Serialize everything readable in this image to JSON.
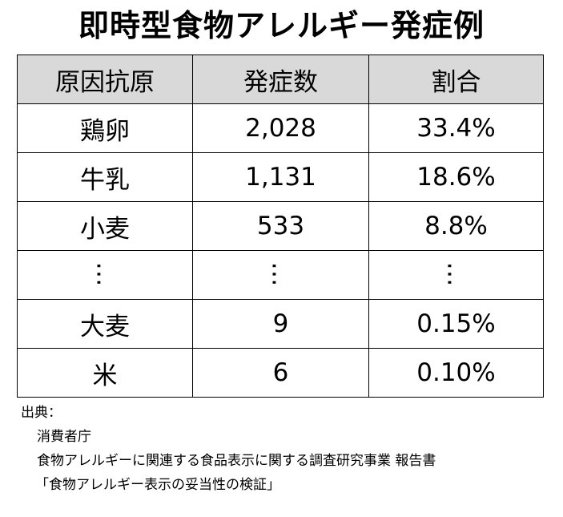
{
  "title": "即時型食物アレルギー発症例",
  "table": {
    "headers": [
      "原因抗原",
      "発症数",
      "割合"
    ],
    "rows": [
      [
        "鶏卵",
        "2,028",
        "33.4%"
      ],
      [
        "牛乳",
        "1,131",
        "18.6%"
      ],
      [
        "小麦",
        "533",
        "8.8%"
      ],
      [
        "…",
        "…",
        "…"
      ],
      [
        "大麦",
        "9",
        "0.15%"
      ],
      [
        "米",
        "6",
        "0.10%"
      ]
    ]
  },
  "source": {
    "label": "出典：",
    "org": "消費者庁",
    "report": "食物アレルギーに関連する食品表示に関する調査研究事業 報告書",
    "report_title": "「食物アレルギー表示の妥当性の検証」"
  }
}
